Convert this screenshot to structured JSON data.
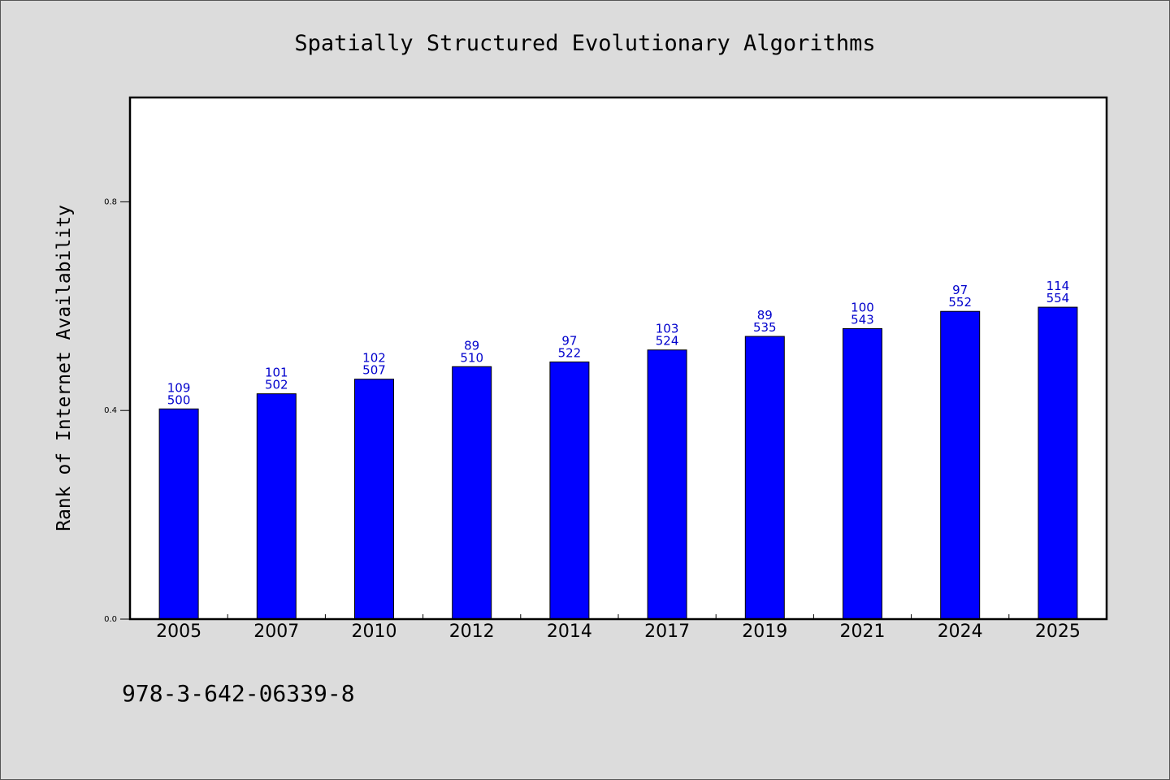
{
  "chart_data": {
    "type": "bar",
    "title": "Spatially Structured Evolutionary Algorithms",
    "xlabel": "",
    "ylabel": "Rank of Internet Availability",
    "categories": [
      "2005",
      "2007",
      "2010",
      "2012",
      "2014",
      "2017",
      "2019",
      "2021",
      "2024",
      "2025"
    ],
    "values": [
      0.403,
      0.432,
      0.46,
      0.484,
      0.493,
      0.516,
      0.542,
      0.557,
      0.59,
      0.598
    ],
    "labels_top": [
      "109",
      "101",
      "102",
      "89",
      "97",
      "103",
      "89",
      "100",
      "97",
      "114"
    ],
    "labels_bottom": [
      "500",
      "502",
      "507",
      "510",
      "522",
      "524",
      "535",
      "543",
      "552",
      "554"
    ],
    "ylim": [
      0,
      1.0
    ],
    "yticks": [
      0.0,
      0.4,
      0.8
    ],
    "ytick_labels": [
      "0.0",
      "0.4",
      "0.8"
    ],
    "grid": false,
    "colors": {
      "bar": "#0000ff",
      "label": "#0000cc",
      "background": "#dcdcdc",
      "plot_background": "#ffffff"
    }
  },
  "footnote": "978-3-642-06339-8"
}
